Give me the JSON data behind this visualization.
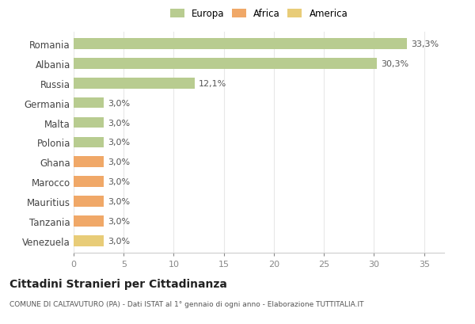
{
  "categories": [
    "Venezuela",
    "Tanzania",
    "Mauritius",
    "Marocco",
    "Ghana",
    "Polonia",
    "Malta",
    "Germania",
    "Russia",
    "Albania",
    "Romania"
  ],
  "values": [
    3.0,
    3.0,
    3.0,
    3.0,
    3.0,
    3.0,
    3.0,
    3.0,
    12.1,
    30.3,
    33.3
  ],
  "colors": [
    "#e8cc78",
    "#f0a868",
    "#f0a868",
    "#f0a868",
    "#f0a868",
    "#b8cc90",
    "#b8cc90",
    "#b8cc90",
    "#b8cc90",
    "#b8cc90",
    "#b8cc90"
  ],
  "labels": [
    "3,0%",
    "3,0%",
    "3,0%",
    "3,0%",
    "3,0%",
    "3,0%",
    "3,0%",
    "3,0%",
    "12,1%",
    "30,3%",
    "33,3%"
  ],
  "legend": [
    {
      "label": "Europa",
      "color": "#b8cc90"
    },
    {
      "label": "Africa",
      "color": "#f0a868"
    },
    {
      "label": "America",
      "color": "#e8cc78"
    }
  ],
  "title": "Cittadini Stranieri per Cittadinanza",
  "subtitle": "COMUNE DI CALTAVUTURO (PA) - Dati ISTAT al 1° gennaio di ogni anno - Elaborazione TUTTITALIA.IT",
  "xlim": [
    0,
    37
  ],
  "xticks": [
    0,
    5,
    10,
    15,
    20,
    25,
    30,
    35
  ],
  "bg_color": "#ffffff",
  "grid_color": "#e8e8e8",
  "bar_height": 0.55
}
